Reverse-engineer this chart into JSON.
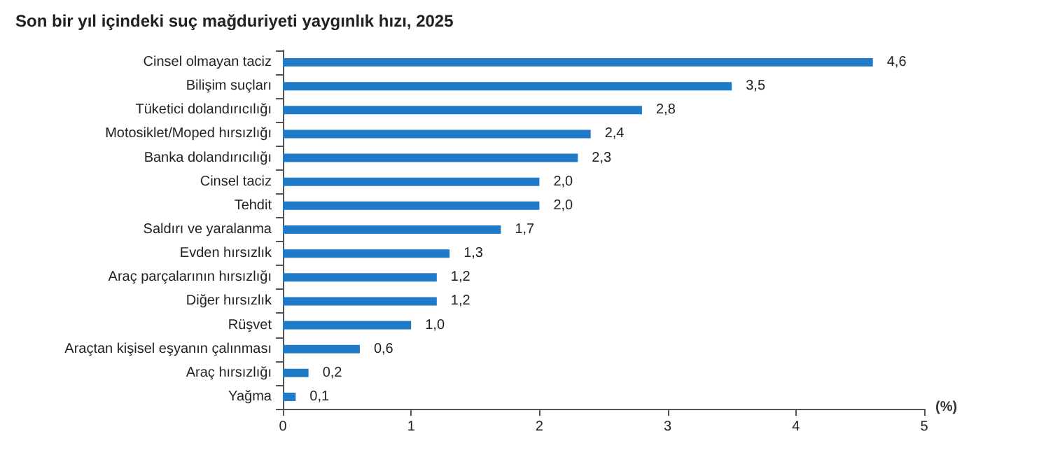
{
  "chart_data": {
    "type": "bar",
    "orientation": "horizontal",
    "title": "Son bir yıl içindeki suç mağduriyeti yaygınlık hızı, 2025",
    "xlabel": "(%)",
    "categories": [
      "Cinsel olmayan taciz",
      "Bilişim suçları",
      "Tüketici dolandırıcılığı",
      "Motosiklet/Moped hırsızlığı",
      "Banka dolandırıcılığı",
      "Cinsel taciz",
      "Tehdit",
      "Saldırı ve yaralanma",
      "Evden hırsızlık",
      "Araç parçalarının hırsızlığı",
      "Diğer hırsızlık",
      "Rüşvet",
      "Araçtan kişisel eşyanın çalınması",
      "Araç hırsızlığı",
      "Yağma"
    ],
    "values": [
      4.6,
      3.5,
      2.8,
      2.4,
      2.3,
      2.0,
      2.0,
      1.7,
      1.3,
      1.2,
      1.2,
      1.0,
      0.6,
      0.2,
      0.1
    ],
    "value_labels": [
      "4,6",
      "3,5",
      "2,8",
      "2,4",
      "2,3",
      "2,0",
      "2,0",
      "1,7",
      "1,3",
      "1,2",
      "1,2",
      "1,0",
      "0,6",
      "0,2",
      "0,1"
    ],
    "color": "#1f7bc8",
    "xlim": [
      0,
      5
    ],
    "xticks": [
      0,
      1,
      2,
      3,
      4,
      5
    ]
  }
}
